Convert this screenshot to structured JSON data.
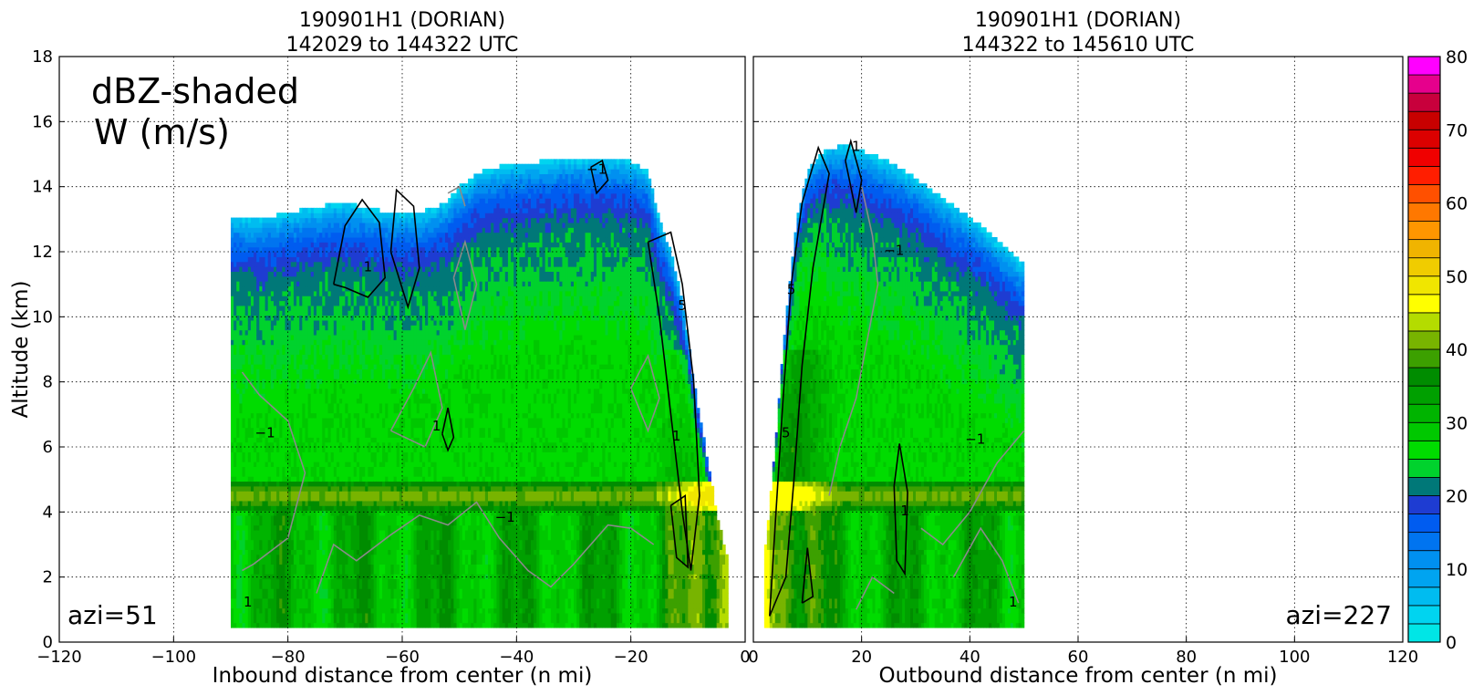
{
  "chart_data": [
    {
      "type": "heatmap",
      "title": "190901H1 (DORIAN)",
      "subtitle": "142029 to 144322 UTC",
      "xlabel": "Inbound distance from center (n mi)",
      "ylabel": "Altitude (km)",
      "xlim": [
        -120,
        0
      ],
      "ylim": [
        0,
        18
      ],
      "xticks": [
        "−120",
        "−100",
        "−80",
        "−60",
        "−40",
        "−20",
        "0"
      ],
      "yticks": [
        "0",
        "2",
        "4",
        "6",
        "8",
        "10",
        "12",
        "14",
        "16",
        "18"
      ],
      "grid": true,
      "annotations": [
        "dBZ-shaded",
        "W (m/s)",
        "azi=51"
      ],
      "contour_labels": [
        "1",
        "−1",
        "5"
      ],
      "echo_extent_x": [
        -90,
        -3
      ],
      "echo_top_profile": [
        [
          -90,
          13.1
        ],
        [
          -85,
          13.0
        ],
        [
          -80,
          13.2
        ],
        [
          -75,
          13.4
        ],
        [
          -70,
          13.5
        ],
        [
          -65,
          13.3
        ],
        [
          -60,
          13.2
        ],
        [
          -55,
          13.3
        ],
        [
          -52,
          13.6
        ],
        [
          -50,
          14.0
        ],
        [
          -47,
          14.4
        ],
        [
          -44,
          14.6
        ],
        [
          -40,
          14.7
        ],
        [
          -35,
          14.8
        ],
        [
          -30,
          14.9
        ],
        [
          -25,
          14.9
        ],
        [
          -20,
          14.8
        ],
        [
          -17,
          14.5
        ],
        [
          -15,
          13.0
        ],
        [
          -13,
          12.0
        ],
        [
          -11,
          10.5
        ],
        [
          -9,
          8.0
        ],
        [
          -7,
          6.0
        ],
        [
          -5,
          4.0
        ],
        [
          -3,
          2.5
        ]
      ],
      "bright_band_km": [
        4.0,
        5.0
      ],
      "max_reflectivity_dBZ": 48
    },
    {
      "type": "heatmap",
      "title": "190901H1 (DORIAN)",
      "subtitle": "144322 to 145610 UTC",
      "xlabel": "Outbound distance from center (n mi)",
      "ylabel": "",
      "xlim": [
        0,
        120
      ],
      "ylim": [
        0,
        18
      ],
      "xticks": [
        "0",
        "20",
        "40",
        "60",
        "80",
        "100",
        "120"
      ],
      "yticks": [],
      "grid": true,
      "annotations": [
        "azi=227"
      ],
      "contour_labels": [
        "1",
        "−1",
        "5",
        "−1"
      ],
      "echo_extent_x": [
        2,
        50
      ],
      "echo_top_profile": [
        [
          2,
          2.5
        ],
        [
          4,
          6.0
        ],
        [
          6,
          10.0
        ],
        [
          8,
          13.0
        ],
        [
          10,
          14.5
        ],
        [
          13,
          15.1
        ],
        [
          17,
          15.3
        ],
        [
          22,
          15.0
        ],
        [
          27,
          14.6
        ],
        [
          32,
          14.0
        ],
        [
          37,
          13.4
        ],
        [
          42,
          12.8
        ],
        [
          46,
          12.2
        ],
        [
          50,
          11.6
        ]
      ],
      "bright_band_km": [
        4.0,
        5.0
      ],
      "max_reflectivity_dBZ": 46
    }
  ],
  "colorbar": {
    "label_values": [
      "0",
      "10",
      "20",
      "30",
      "40",
      "50",
      "60",
      "70",
      "80"
    ],
    "range": [
      0,
      80
    ],
    "step": 2.5,
    "colors": [
      "#00e6e6",
      "#00d4f0",
      "#00bcf0",
      "#00a4f0",
      "#0090f0",
      "#0074f0",
      "#005cf0",
      "#1e3cd2",
      "#007878",
      "#00d22d",
      "#00dc00",
      "#00c800",
      "#00b400",
      "#00a000",
      "#008c00",
      "#3ca000",
      "#78b400",
      "#b4dc00",
      "#ffff00",
      "#f0e600",
      "#f0cc00",
      "#f0b400",
      "#ff9600",
      "#ff7800",
      "#ff5000",
      "#ff1e00",
      "#f00000",
      "#dc0000",
      "#c80000",
      "#c8003c",
      "#e6008c",
      "#ff00ff",
      "#dc3cdc",
      "#b446c8",
      "#7846a0",
      "#3c1e50",
      "#000000"
    ]
  }
}
